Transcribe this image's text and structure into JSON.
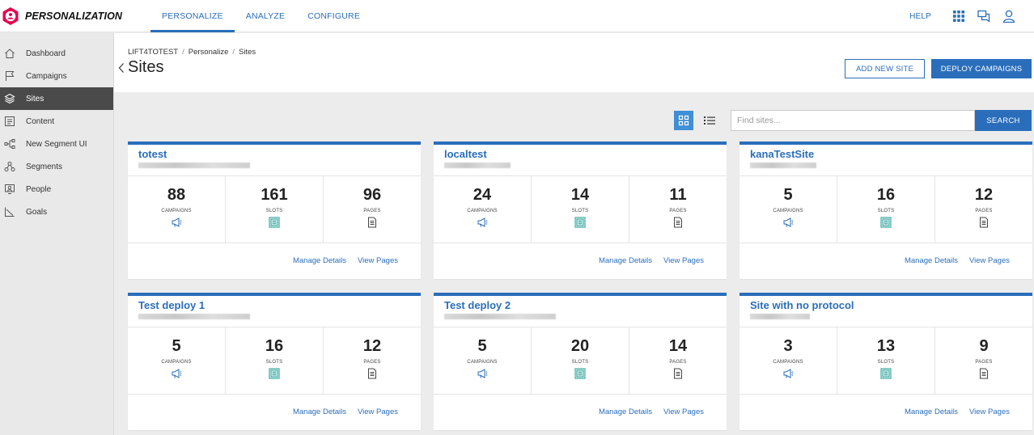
{
  "app": {
    "name": "PERSONALIZATION"
  },
  "nav": {
    "tabs": [
      {
        "label": "PERSONALIZE"
      },
      {
        "label": "ANALYZE"
      },
      {
        "label": "CONFIGURE"
      }
    ]
  },
  "header": {
    "help_label": "HELP"
  },
  "sidebar": {
    "items": [
      {
        "label": "Dashboard"
      },
      {
        "label": "Campaigns"
      },
      {
        "label": "Sites"
      },
      {
        "label": "Content"
      },
      {
        "label": "New Segment UI"
      },
      {
        "label": "Segments"
      },
      {
        "label": "People"
      },
      {
        "label": "Goals"
      }
    ]
  },
  "page": {
    "breadcrumb": [
      "LIFT4TOTEST",
      "Personalize",
      "Sites"
    ],
    "title": "Sites",
    "add_site_label": "ADD NEW SITE",
    "deploy_label": "DEPLOY CAMPAIGNS"
  },
  "search": {
    "placeholder": "Find sites...",
    "button_label": "SEARCH"
  },
  "card_labels": {
    "campaigns": "CAMPAIGNS",
    "slots": "SLOTS",
    "pages": "PAGES",
    "manage": "Manage Details",
    "view": "View Pages"
  },
  "sites": [
    {
      "name": "totest",
      "campaigns": "88",
      "slots": "161",
      "pages": "96"
    },
    {
      "name": "localtest",
      "campaigns": "24",
      "slots": "14",
      "pages": "11"
    },
    {
      "name": "kanaTestSite",
      "campaigns": "5",
      "slots": "16",
      "pages": "12"
    },
    {
      "name": "Test deploy 1",
      "campaigns": "5",
      "slots": "16",
      "pages": "12"
    },
    {
      "name": "Test deploy 2",
      "campaigns": "5",
      "slots": "20",
      "pages": "14"
    },
    {
      "name": "Site with no protocol",
      "campaigns": "3",
      "slots": "13",
      "pages": "9"
    }
  ],
  "colors": {
    "accent": "#2a6ebb",
    "brand": "#e8004c",
    "slots_icon": "#2aa198"
  }
}
